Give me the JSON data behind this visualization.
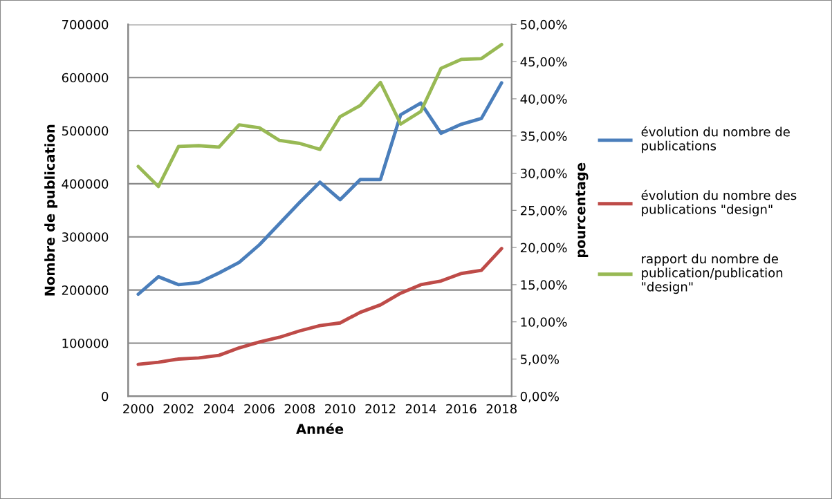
{
  "chart_data": {
    "type": "line",
    "xlabel": "Année",
    "ylabel": "Nombre de publication",
    "y2label": "pourcentage",
    "categories": [
      "2000",
      null,
      "2002",
      null,
      "2004",
      null,
      "2006",
      null,
      "2008",
      null,
      "2010",
      null,
      "2012",
      null,
      "2014",
      null,
      "2016",
      null,
      "2018"
    ],
    "series": [
      {
        "name": "évolution du nombre de publications",
        "color": "#4a7ebb",
        "values": [
          192000,
          225000,
          210000,
          214000,
          232000,
          252000,
          285000,
          325000,
          365000,
          403000,
          370000,
          408000,
          408000,
          530000,
          552000,
          495000,
          512000,
          523000,
          590000
        ]
      },
      {
        "name": "évolution du nombre des publications \"design\"",
        "color": "#be4b48",
        "values": [
          60000,
          64000,
          70000,
          72000,
          77000,
          91000,
          102000,
          111000,
          123000,
          133000,
          138000,
          158000,
          172000,
          194000,
          210000,
          217000,
          231000,
          237000,
          278000
        ]
      },
      {
        "name": "rapport du nombre de publication/publication \"design\"",
        "color": "#98b954",
        "axis": "y2",
        "values": [
          30.9,
          28.2,
          33.6,
          33.7,
          33.5,
          36.5,
          36.1,
          34.4,
          34.0,
          33.2,
          37.6,
          39.1,
          42.2,
          36.6,
          38.3,
          44.1,
          45.3,
          45.4,
          47.3
        ]
      }
    ],
    "ylim": [
      0,
      700000
    ],
    "yticks": [
      0,
      100000,
      200000,
      300000,
      400000,
      500000,
      600000,
      700000
    ],
    "y2lim": [
      0,
      50
    ],
    "y2ticks": [
      {
        "value": 0,
        "label": "0,00%"
      },
      {
        "value": 5,
        "label": "5,00%"
      },
      {
        "value": 10,
        "label": "10,00%"
      },
      {
        "value": 15,
        "label": "15,00%"
      },
      {
        "value": 20,
        "label": "20,00%"
      },
      {
        "value": 25,
        "label": "25,00%"
      },
      {
        "value": 30,
        "label": "30,00%"
      },
      {
        "value": 35,
        "label": "35,00%"
      },
      {
        "value": 40,
        "label": "40,00%"
      },
      {
        "value": 45,
        "label": "45,00%"
      },
      {
        "value": 50,
        "label": "50,00%"
      }
    ],
    "grid": "y",
    "legend": "right",
    "marker": "none",
    "line_style": "solid"
  }
}
